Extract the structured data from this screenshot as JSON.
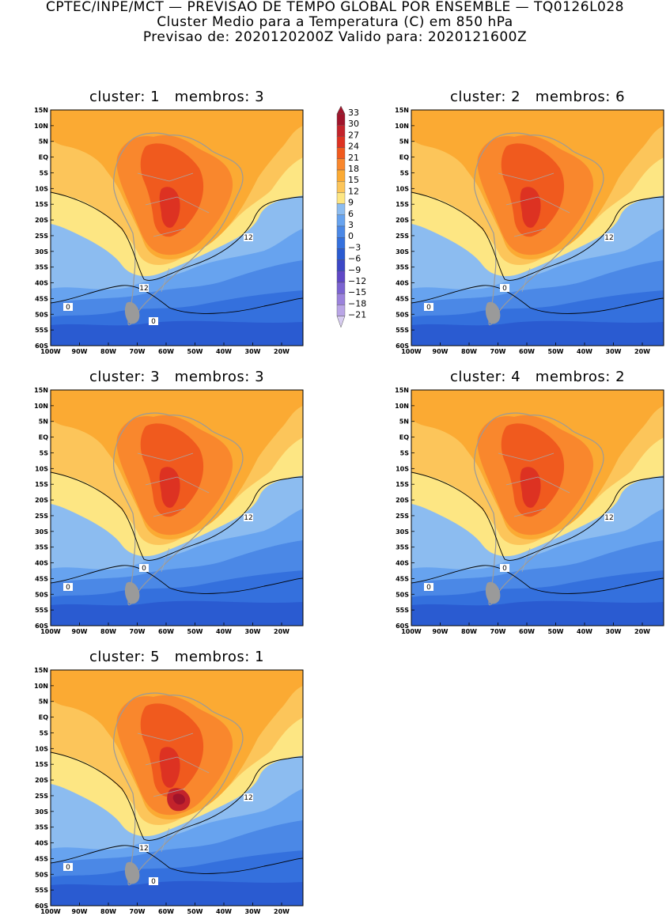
{
  "header": {
    "line1": "CPTEC/INPE/MCT — PREVISAO DE TEMPO GLOBAL POR ENSEMBLE — TQ0126L028",
    "line2": "Cluster Medio para a Temperatura (C) em 850 hPa",
    "line3": "Previsao de: 2020120200Z    Valido para: 2020121600Z"
  },
  "axes": {
    "lat_labels": [
      "15N",
      "10N",
      "5N",
      "EQ",
      "5S",
      "10S",
      "15S",
      "20S",
      "25S",
      "30S",
      "35S",
      "40S",
      "45S",
      "50S",
      "55S",
      "60S"
    ],
    "lon_labels": [
      "100W",
      "90W",
      "80W",
      "70W",
      "60W",
      "50W",
      "40W",
      "30W",
      "20W"
    ]
  },
  "legend": {
    "labels": [
      "33",
      "30",
      "27",
      "24",
      "21",
      "18",
      "15",
      "12",
      "9",
      "6",
      "3",
      "0",
      "−3",
      "−6",
      "−9",
      "−12",
      "−15",
      "−18",
      "−21"
    ],
    "colors": [
      "#a0142b",
      "#c3232b",
      "#dd3222",
      "#f05a1e",
      "#f9872d",
      "#fbaa33",
      "#fcc55a",
      "#fde683",
      "#8cbcf0",
      "#67a3ef",
      "#4b88e6",
      "#3470dd",
      "#2a5bd1",
      "#3c47c6",
      "#5f48c6",
      "#7b63d1",
      "#9b82dc",
      "#b9a5e6",
      "#d8cdf1"
    ]
  },
  "panels": [
    {
      "id": 1,
      "cluster_label": "cluster:",
      "cluster_num": "1",
      "membros_label": "membros:",
      "membros_num": "3",
      "contour_labels": [
        "12",
        "12",
        "0",
        "0"
      ]
    },
    {
      "id": 2,
      "cluster_label": "cluster:",
      "cluster_num": "2",
      "membros_label": "membros:",
      "membros_num": "6",
      "contour_labels": [
        "12",
        "0",
        "0"
      ]
    },
    {
      "id": 3,
      "cluster_label": "cluster:",
      "cluster_num": "3",
      "membros_label": "membros:",
      "membros_num": "3",
      "contour_labels": [
        "12",
        "0",
        "0"
      ]
    },
    {
      "id": 4,
      "cluster_label": "cluster:",
      "cluster_num": "4",
      "membros_label": "membros:",
      "membros_num": "2",
      "contour_labels": [
        "12",
        "0",
        "0"
      ]
    },
    {
      "id": 5,
      "cluster_label": "cluster:",
      "cluster_num": "5",
      "membros_label": "membros:",
      "membros_num": "1",
      "contour_labels": [
        "12",
        "12",
        "0",
        "0"
      ]
    }
  ]
}
